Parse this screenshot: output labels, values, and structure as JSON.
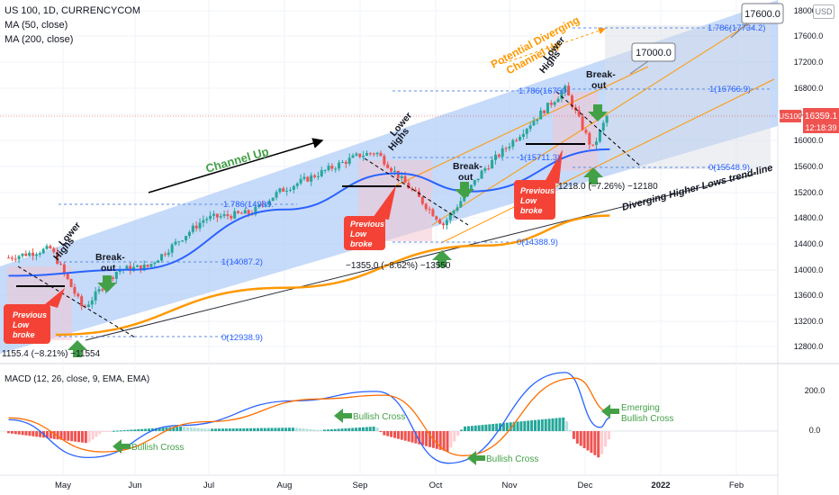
{
  "header": {
    "title": "US 100, 1D, CURRENCYCOM",
    "ma50": "MA (50, close)",
    "ma200": "MA (200, close)",
    "macd": "MACD (12, 26, close, 9, EMA, EMA)",
    "currency": "USD"
  },
  "price_axis": {
    "ticks": [
      "18000.0",
      "17600.0",
      "17200.0",
      "16800.0",
      "16400.0",
      "16000.0",
      "15600.0",
      "15200.0",
      "14800.0",
      "14400.0",
      "14000.0",
      "13600.0",
      "13200.0",
      "12800.0"
    ],
    "symbol_tag": "US100",
    "last_price": "16359.1",
    "countdown": "12:18:39"
  },
  "macd_axis": {
    "ticks": [
      "200.0",
      "0.0"
    ]
  },
  "time_axis": {
    "ticks": [
      "May",
      "Jun",
      "Jul",
      "Aug",
      "Sep",
      "Oct",
      "Nov",
      "Dec",
      "2022",
      "Feb"
    ]
  },
  "annotations": {
    "channel_up": "Channel Up",
    "potential_channel": "Potential Diverging Channel Up",
    "diverging_trendline": "Diverging Higher Lows trend-line",
    "lower_highs": "Lower Highs",
    "break_out": "Break-out",
    "previous_low_broke": "Previous Low broke",
    "target_17000": "17000.0",
    "target_17600": "17600.0",
    "bullish_cross": "Bullish Cross",
    "emerging_bullish_cross": "Emerging Bullish Cross",
    "drop_may": "1155.4 (−8.21%) −11554",
    "drop_oct": "−1355.0 (−8.62%) −13550",
    "drop_dec": "1218.0 (−7.26%) −12180"
  },
  "fib_labels": {
    "may_high": "1.786(14989.",
    "may_mid": "1(14087.2)",
    "may_low": "0(12938.9)",
    "sep_high": "1.786(16750.",
    "sep_mid": "1(15711.3)",
    "sep_low": "0(14388.9)",
    "dec_high": "1.786(17734.2)",
    "dec_mid": "1(16766.9)",
    "dec_low": "0(15548.9)"
  },
  "colors": {
    "up": "#26a69a",
    "down": "#ef5350",
    "ma50": "#2962ff",
    "ma200": "#ff9800",
    "channel_fill": "#b3cdf7",
    "macd_line": "#2962ff",
    "signal_line": "#ff6d00",
    "arrow_green": "#43a047",
    "red_callout": "#f44336"
  },
  "chart_data": [
    {
      "type": "candlestick",
      "title": "US 100, 1D, CURRENCYCOM",
      "ylim": [
        12600,
        18000
      ],
      "series_approx_close": [
        {
          "date": "2021-04-12",
          "close": 13900
        },
        {
          "date": "2021-04-29",
          "close": 14050
        },
        {
          "date": "2021-05-12",
          "close": 13050
        },
        {
          "date": "2021-05-26",
          "close": 13700
        },
        {
          "date": "2021-06-07",
          "close": 13750
        },
        {
          "date": "2021-06-30",
          "close": 14550
        },
        {
          "date": "2021-07-19",
          "close": 14650
        },
        {
          "date": "2021-07-30",
          "close": 15000
        },
        {
          "date": "2021-08-31",
          "close": 15600
        },
        {
          "date": "2021-09-07",
          "close": 15650
        },
        {
          "date": "2021-10-04",
          "close": 14450
        },
        {
          "date": "2021-10-20",
          "close": 15350
        },
        {
          "date": "2021-11-22",
          "close": 16700
        },
        {
          "date": "2021-12-03",
          "close": 15700
        },
        {
          "date": "2021-12-10",
          "close": 16359.1
        }
      ],
      "ma50_approx": [
        {
          "date": "2021-04-12",
          "value": 13600
        },
        {
          "date": "2021-06-01",
          "value": 13700
        },
        {
          "date": "2021-08-01",
          "value": 14700
        },
        {
          "date": "2021-09-15",
          "value": 15300
        },
        {
          "date": "2021-10-15",
          "value": 15000
        },
        {
          "date": "2021-12-10",
          "value": 15700
        }
      ],
      "ma200_approx": [
        {
          "date": "2021-05-01",
          "value": 12620
        },
        {
          "date": "2021-08-01",
          "value": 13400
        },
        {
          "date": "2021-10-20",
          "value": 14100
        },
        {
          "date": "2021-12-10",
          "value": 14600
        }
      ],
      "last_price": 16359.1
    },
    {
      "type": "line",
      "title": "MACD (12, 26, close, 9, EMA, EMA)",
      "ylim": [
        -200,
        300
      ],
      "series": [
        {
          "name": "MACD",
          "points": [
            {
              "date": "2021-04-12",
              "value": 60
            },
            {
              "date": "2021-05-14",
              "value": -140
            },
            {
              "date": "2021-06-20",
              "value": 30
            },
            {
              "date": "2021-08-05",
              "value": 160
            },
            {
              "date": "2021-09-07",
              "value": 210
            },
            {
              "date": "2021-10-06",
              "value": -170
            },
            {
              "date": "2021-11-22",
              "value": 310
            },
            {
              "date": "2021-12-06",
              "value": 20
            },
            {
              "date": "2021-12-10",
              "value": 70
            }
          ]
        },
        {
          "name": "Signal",
          "points": [
            {
              "date": "2021-04-12",
              "value": 70
            },
            {
              "date": "2021-05-20",
              "value": -110
            },
            {
              "date": "2021-07-01",
              "value": 50
            },
            {
              "date": "2021-08-15",
              "value": 170
            },
            {
              "date": "2021-09-10",
              "value": 190
            },
            {
              "date": "2021-10-12",
              "value": -130
            },
            {
              "date": "2021-11-26",
              "value": 280
            },
            {
              "date": "2021-12-10",
              "value": 100
            }
          ]
        }
      ]
    }
  ]
}
